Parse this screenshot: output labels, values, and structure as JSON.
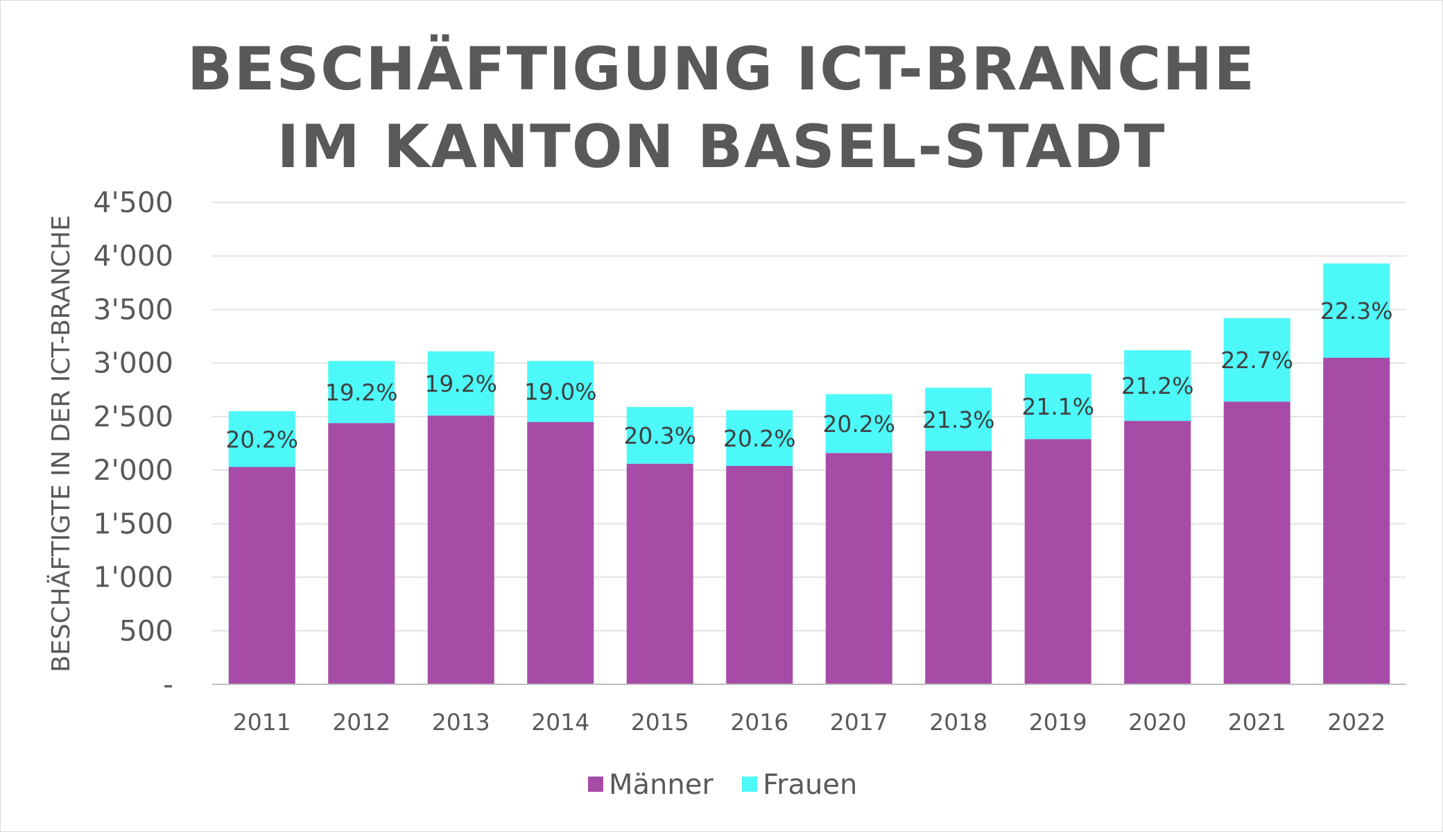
{
  "chart_data": {
    "type": "bar",
    "stacked": true,
    "title": [
      "BESCHÄFTIGUNG ICT-BRANCHE",
      "IM KANTON BASEL-STADT"
    ],
    "xlabel": "",
    "ylabel": "BESCHÄFTIGTE IN DER ICT-BRANCHE",
    "ylim": [
      0,
      4500
    ],
    "yticks": [
      0,
      500,
      1000,
      1500,
      2000,
      2500,
      3000,
      3500,
      4000,
      4500
    ],
    "ytick_labels": [
      "-",
      "500",
      "1'000",
      "1'500",
      "2'000",
      "2'500",
      "3'000",
      "3'500",
      "4'000",
      "4'500"
    ],
    "grid": true,
    "legend_position": "bottom",
    "categories": [
      "2011",
      "2012",
      "2013",
      "2014",
      "2015",
      "2016",
      "2017",
      "2018",
      "2019",
      "2020",
      "2021",
      "2022"
    ],
    "series": [
      {
        "name": "Männer",
        "color": "#a64ca6",
        "values": [
          2030,
          2440,
          2510,
          2450,
          2060,
          2040,
          2160,
          2180,
          2290,
          2460,
          2640,
          3050
        ]
      },
      {
        "name": "Frauen",
        "color": "#4df8f8",
        "values": [
          520,
          580,
          600,
          570,
          530,
          520,
          550,
          590,
          610,
          660,
          780,
          880
        ]
      }
    ],
    "data_labels": [
      "20.2%",
      "19.2%",
      "19.2%",
      "19.0%",
      "20.3%",
      "20.2%",
      "20.2%",
      "21.3%",
      "21.1%",
      "21.2%",
      "22.7%",
      "22.3%"
    ]
  }
}
